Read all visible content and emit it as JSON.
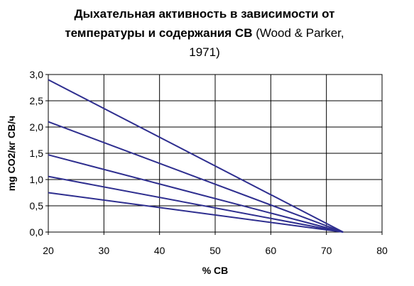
{
  "chart_data": {
    "type": "line",
    "title": {
      "line1": "Дыхательная активность в зависимости от",
      "line2_bold": "температуры и содержания СВ",
      "line2_normal": " (Wood & Parker,",
      "line3": "1971)"
    },
    "xlabel": "% СВ",
    "ylabel": "mg CO2/кг СВ/ч",
    "xlim": [
      20,
      80
    ],
    "ylim": [
      0,
      3
    ],
    "x_ticks": [
      "20",
      "30",
      "40",
      "50",
      "60",
      "70",
      "80"
    ],
    "y_ticks": [
      "0,0",
      "0,5",
      "1,0",
      "1,5",
      "2,0",
      "2,5",
      "3,0"
    ],
    "grid": true,
    "line_color": "#2e2e8f",
    "series": [
      {
        "x": [
          20,
          73
        ],
        "values": [
          2.9,
          0
        ]
      },
      {
        "x": [
          20,
          73
        ],
        "values": [
          2.1,
          0
        ]
      },
      {
        "x": [
          20,
          73
        ],
        "values": [
          1.47,
          0
        ]
      },
      {
        "x": [
          20,
          73
        ],
        "values": [
          1.06,
          0
        ]
      },
      {
        "x": [
          20,
          73
        ],
        "values": [
          0.75,
          0
        ]
      }
    ]
  }
}
